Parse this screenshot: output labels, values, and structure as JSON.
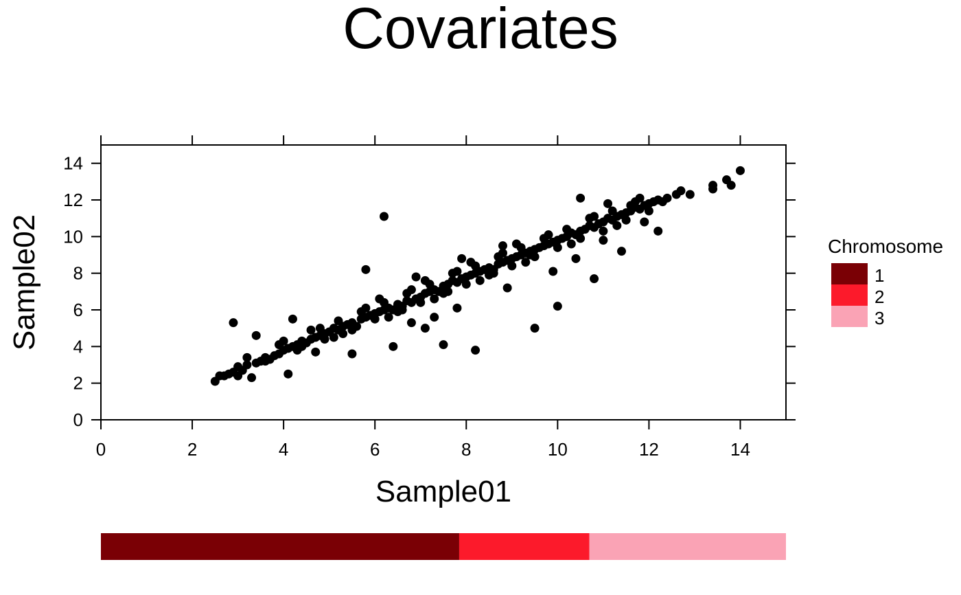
{
  "chart_data": {
    "type": "scatter",
    "title": "Covariates",
    "xlabel": "Sample01",
    "ylabel": "Sample02",
    "xlim": [
      0,
      15
    ],
    "ylim": [
      0,
      15
    ],
    "xticks": [
      0,
      2,
      4,
      6,
      8,
      10,
      12,
      14
    ],
    "yticks": [
      0,
      2,
      4,
      6,
      8,
      10,
      12,
      14
    ],
    "grid": false,
    "point_color": "#000000",
    "legend": {
      "title": "Chromosome",
      "position": "right",
      "items": [
        {
          "label": "1",
          "color": "#7a0005"
        },
        {
          "label": "2",
          "color": "#fc1a2b"
        },
        {
          "label": "3",
          "color": "#faa3b5"
        }
      ]
    },
    "covariate_bar": [
      {
        "label": "1",
        "color": "#7a0005",
        "fraction": 0.523
      },
      {
        "label": "2",
        "color": "#fc1a2b",
        "fraction": 0.19
      },
      {
        "label": "3",
        "color": "#faa3b5",
        "fraction": 0.287
      }
    ],
    "points": [
      [
        2.5,
        2.1
      ],
      [
        2.6,
        2.4
      ],
      [
        2.7,
        2.4
      ],
      [
        2.8,
        2.5
      ],
      [
        2.9,
        2.6
      ],
      [
        3.0,
        2.4
      ],
      [
        3.1,
        2.7
      ],
      [
        3.2,
        3.0
      ],
      [
        3.3,
        2.3
      ],
      [
        3.4,
        3.1
      ],
      [
        3.5,
        3.2
      ],
      [
        3.6,
        3.4
      ],
      [
        3.7,
        3.3
      ],
      [
        3.8,
        3.5
      ],
      [
        3.9,
        3.6
      ],
      [
        4.0,
        3.8
      ],
      [
        4.1,
        3.9
      ],
      [
        4.2,
        4.0
      ],
      [
        4.3,
        4.1
      ],
      [
        4.4,
        4.3
      ],
      [
        4.5,
        4.2
      ],
      [
        4.6,
        4.4
      ],
      [
        4.7,
        4.5
      ],
      [
        4.8,
        4.6
      ],
      [
        4.9,
        4.7
      ],
      [
        5.0,
        4.8
      ],
      [
        5.1,
        5.0
      ],
      [
        5.2,
        4.9
      ],
      [
        5.3,
        5.1
      ],
      [
        5.4,
        5.2
      ],
      [
        5.5,
        5.3
      ],
      [
        5.6,
        5.1
      ],
      [
        5.7,
        5.5
      ],
      [
        5.8,
        5.6
      ],
      [
        5.9,
        5.7
      ],
      [
        6.0,
        5.8
      ],
      [
        6.1,
        5.9
      ],
      [
        6.2,
        6.0
      ],
      [
        6.3,
        6.1
      ],
      [
        6.4,
        6.0
      ],
      [
        6.5,
        6.3
      ],
      [
        6.6,
        6.2
      ],
      [
        6.7,
        6.5
      ],
      [
        6.8,
        6.4
      ],
      [
        6.9,
        6.6
      ],
      [
        7.0,
        6.7
      ],
      [
        7.1,
        6.9
      ],
      [
        7.2,
        7.0
      ],
      [
        7.3,
        7.1
      ],
      [
        7.4,
        7.0
      ],
      [
        7.5,
        7.3
      ],
      [
        7.6,
        7.4
      ],
      [
        7.7,
        7.6
      ],
      [
        7.8,
        7.5
      ],
      [
        7.9,
        7.7
      ],
      [
        8.0,
        7.8
      ],
      [
        8.1,
        7.9
      ],
      [
        8.2,
        8.0
      ],
      [
        8.3,
        8.1
      ],
      [
        8.4,
        8.2
      ],
      [
        8.5,
        8.3
      ],
      [
        8.6,
        8.2
      ],
      [
        8.7,
        8.5
      ],
      [
        8.8,
        8.6
      ],
      [
        8.9,
        8.7
      ],
      [
        9.0,
        8.8
      ],
      [
        9.1,
        8.9
      ],
      [
        9.2,
        9.0
      ],
      [
        9.3,
        9.1
      ],
      [
        9.4,
        9.0
      ],
      [
        9.5,
        9.3
      ],
      [
        9.6,
        9.4
      ],
      [
        9.7,
        9.5
      ],
      [
        9.8,
        9.6
      ],
      [
        9.9,
        9.7
      ],
      [
        10.0,
        9.8
      ],
      [
        10.1,
        9.9
      ],
      [
        10.2,
        10.0
      ],
      [
        10.3,
        10.2
      ],
      [
        10.4,
        10.1
      ],
      [
        10.5,
        10.3
      ],
      [
        10.6,
        10.4
      ],
      [
        10.7,
        10.6
      ],
      [
        10.8,
        10.5
      ],
      [
        10.9,
        10.7
      ],
      [
        11.0,
        10.8
      ],
      [
        11.1,
        11.0
      ],
      [
        11.2,
        10.9
      ],
      [
        11.3,
        11.1
      ],
      [
        11.4,
        11.2
      ],
      [
        11.5,
        11.3
      ],
      [
        11.6,
        11.4
      ],
      [
        11.7,
        11.6
      ],
      [
        11.8,
        11.5
      ],
      [
        11.9,
        11.7
      ],
      [
        12.0,
        11.8
      ],
      [
        12.1,
        11.9
      ],
      [
        12.2,
        12.0
      ],
      [
        12.4,
        12.1
      ],
      [
        12.6,
        12.3
      ],
      [
        3.0,
        2.9
      ],
      [
        3.2,
        3.4
      ],
      [
        3.6,
        3.2
      ],
      [
        3.9,
        4.1
      ],
      [
        4.3,
        3.8
      ],
      [
        4.6,
        4.9
      ],
      [
        4.9,
        4.4
      ],
      [
        5.2,
        5.4
      ],
      [
        5.5,
        4.9
      ],
      [
        5.7,
        5.9
      ],
      [
        6.0,
        5.5
      ],
      [
        6.2,
        6.4
      ],
      [
        6.5,
        5.9
      ],
      [
        6.7,
        6.9
      ],
      [
        7.0,
        6.4
      ],
      [
        7.2,
        7.4
      ],
      [
        7.5,
        6.9
      ],
      [
        7.7,
        8.0
      ],
      [
        8.0,
        7.4
      ],
      [
        8.2,
        8.4
      ],
      [
        8.5,
        7.9
      ],
      [
        8.7,
        8.9
      ],
      [
        9.0,
        8.4
      ],
      [
        9.2,
        9.4
      ],
      [
        9.5,
        8.9
      ],
      [
        9.7,
        9.9
      ],
      [
        10.0,
        9.4
      ],
      [
        10.2,
        10.4
      ],
      [
        10.5,
        9.9
      ],
      [
        10.7,
        11.0
      ],
      [
        11.0,
        10.3
      ],
      [
        11.2,
        11.4
      ],
      [
        11.5,
        10.9
      ],
      [
        11.7,
        11.9
      ],
      [
        12.0,
        11.4
      ],
      [
        12.3,
        11.9
      ],
      [
        4.0,
        4.3
      ],
      [
        4.4,
        4.0
      ],
      [
        4.8,
        5.0
      ],
      [
        5.3,
        4.7
      ],
      [
        5.8,
        6.1
      ],
      [
        6.3,
        5.6
      ],
      [
        6.8,
        7.1
      ],
      [
        7.3,
        6.6
      ],
      [
        7.8,
        8.1
      ],
      [
        8.3,
        7.6
      ],
      [
        8.8,
        9.1
      ],
      [
        9.3,
        8.6
      ],
      [
        9.8,
        10.1
      ],
      [
        10.3,
        9.6
      ],
      [
        10.8,
        11.1
      ],
      [
        11.3,
        10.6
      ],
      [
        11.8,
        12.1
      ],
      [
        6.1,
        6.6
      ],
      [
        6.6,
        6.0
      ],
      [
        7.1,
        7.6
      ],
      [
        7.6,
        7.0
      ],
      [
        8.1,
        8.6
      ],
      [
        8.6,
        8.0
      ],
      [
        9.1,
        9.6
      ],
      [
        2.9,
        5.3
      ],
      [
        3.4,
        4.6
      ],
      [
        4.1,
        2.5
      ],
      [
        4.2,
        5.5
      ],
      [
        5.5,
        3.6
      ],
      [
        5.8,
        8.2
      ],
      [
        6.2,
        11.1
      ],
      [
        6.4,
        4.0
      ],
      [
        7.5,
        4.1
      ],
      [
        8.2,
        3.8
      ],
      [
        9.5,
        5.0
      ],
      [
        10.0,
        6.2
      ],
      [
        10.5,
        12.1
      ],
      [
        10.8,
        7.7
      ],
      [
        11.4,
        9.2
      ],
      [
        12.2,
        10.3
      ],
      [
        12.7,
        12.5
      ],
      [
        12.9,
        12.3
      ],
      [
        13.4,
        12.6
      ],
      [
        13.4,
        12.8
      ],
      [
        13.7,
        13.1
      ],
      [
        13.8,
        12.8
      ],
      [
        14.0,
        13.6
      ],
      [
        7.1,
        5.0
      ],
      [
        7.8,
        6.1
      ],
      [
        8.9,
        7.2
      ],
      [
        9.9,
        8.1
      ],
      [
        11.1,
        11.8
      ],
      [
        11.6,
        11.7
      ],
      [
        7.9,
        8.8
      ],
      [
        8.8,
        9.5
      ],
      [
        9.4,
        9.2
      ],
      [
        10.4,
        8.8
      ],
      [
        11.0,
        9.8
      ],
      [
        11.9,
        10.8
      ],
      [
        6.8,
        5.3
      ],
      [
        7.3,
        5.6
      ],
      [
        6.9,
        7.8
      ],
      [
        5.1,
        4.5
      ],
      [
        4.7,
        3.7
      ]
    ]
  }
}
